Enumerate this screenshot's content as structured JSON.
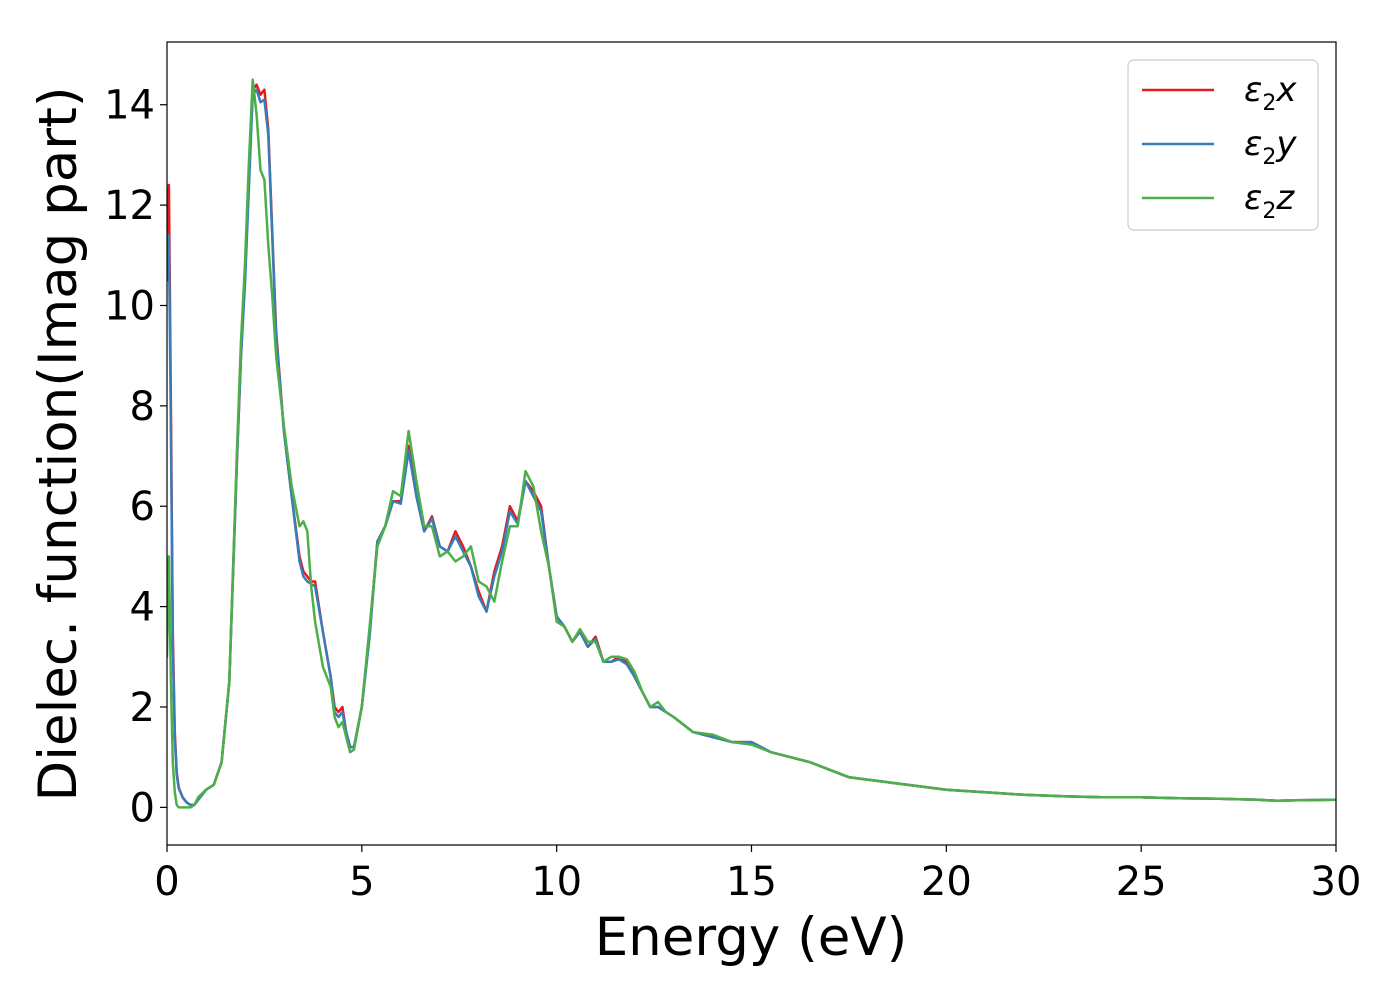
{
  "chart_data": {
    "type": "line",
    "xlabel": "Energy (eV)",
    "ylabel": "Dielec. function(Imag part)",
    "xlim": [
      0,
      30
    ],
    "ylim": [
      -0.75,
      15.25
    ],
    "xticks": [
      0,
      5,
      10,
      15,
      20,
      25,
      30
    ],
    "yticks": [
      0,
      2,
      4,
      6,
      8,
      10,
      12,
      14
    ],
    "grid": false,
    "legend_position": "top-right",
    "series": [
      {
        "name": "ε2x",
        "legend": {
          "base": "ε",
          "sub": "2",
          "tail": "x"
        },
        "color": "#e41a1c",
        "x": [
          0.0,
          0.05,
          0.1,
          0.15,
          0.2,
          0.25,
          0.3,
          0.4,
          0.5,
          0.6,
          0.7,
          0.8,
          1.0,
          1.2,
          1.4,
          1.6,
          1.8,
          1.9,
          2.0,
          2.1,
          2.2,
          2.3,
          2.4,
          2.5,
          2.6,
          2.7,
          2.8,
          3.0,
          3.2,
          3.4,
          3.5,
          3.6,
          3.7,
          3.8,
          4.0,
          4.2,
          4.3,
          4.4,
          4.5,
          4.6,
          4.7,
          4.8,
          5.0,
          5.2,
          5.4,
          5.6,
          5.8,
          6.0,
          6.2,
          6.4,
          6.6,
          6.8,
          7.0,
          7.2,
          7.4,
          7.6,
          7.8,
          8.0,
          8.2,
          8.4,
          8.6,
          8.8,
          9.0,
          9.2,
          9.4,
          9.6,
          9.8,
          10.0,
          10.2,
          10.4,
          10.6,
          10.8,
          11.0,
          11.2,
          11.4,
          11.6,
          11.8,
          12.0,
          12.2,
          12.4,
          12.6,
          12.8,
          13.0,
          13.5,
          14.0,
          14.5,
          15.0,
          15.5,
          16.0,
          16.5,
          17.0,
          17.5,
          18.0,
          18.5,
          19.0,
          19.5,
          20.0,
          21.0,
          22.0,
          23.0,
          24.0,
          25.0,
          26.0,
          27.0,
          28.0,
          28.5,
          29.0,
          30.0
        ],
        "y": [
          11.0,
          12.4,
          8.0,
          3.5,
          1.5,
          0.7,
          0.4,
          0.2,
          0.1,
          0.05,
          0.05,
          0.15,
          0.35,
          0.45,
          0.9,
          2.5,
          7.0,
          9.0,
          10.5,
          12.5,
          14.3,
          14.4,
          14.2,
          14.3,
          13.5,
          11.5,
          9.5,
          7.5,
          6.2,
          5.0,
          4.7,
          4.6,
          4.5,
          4.5,
          3.5,
          2.6,
          2.0,
          1.9,
          2.0,
          1.5,
          1.2,
          1.2,
          2.0,
          3.5,
          5.3,
          5.6,
          6.1,
          6.1,
          7.2,
          6.2,
          5.5,
          5.8,
          5.2,
          5.1,
          5.5,
          5.2,
          4.8,
          4.3,
          3.9,
          4.7,
          5.2,
          6.0,
          5.7,
          6.5,
          6.3,
          6.0,
          4.8,
          3.8,
          3.6,
          3.3,
          3.5,
          3.2,
          3.4,
          2.9,
          2.9,
          3.0,
          2.9,
          2.6,
          2.3,
          2.0,
          2.0,
          1.9,
          1.8,
          1.5,
          1.4,
          1.3,
          1.3,
          1.1,
          1.0,
          0.9,
          0.75,
          0.6,
          0.55,
          0.5,
          0.45,
          0.4,
          0.35,
          0.3,
          0.25,
          0.22,
          0.2,
          0.2,
          0.18,
          0.17,
          0.15,
          0.13,
          0.14,
          0.15
        ]
      },
      {
        "name": "ε2y",
        "legend": {
          "base": "ε",
          "sub": "2",
          "tail": "y"
        },
        "color": "#377eb8",
        "x": [
          0.0,
          0.05,
          0.1,
          0.15,
          0.2,
          0.25,
          0.3,
          0.4,
          0.5,
          0.6,
          0.7,
          0.8,
          1.0,
          1.2,
          1.4,
          1.6,
          1.8,
          1.9,
          2.0,
          2.1,
          2.2,
          2.3,
          2.4,
          2.5,
          2.6,
          2.7,
          2.8,
          3.0,
          3.2,
          3.4,
          3.5,
          3.6,
          3.7,
          3.8,
          4.0,
          4.2,
          4.3,
          4.4,
          4.5,
          4.6,
          4.7,
          4.8,
          5.0,
          5.2,
          5.4,
          5.6,
          5.8,
          6.0,
          6.2,
          6.4,
          6.6,
          6.8,
          7.0,
          7.2,
          7.4,
          7.6,
          7.8,
          8.0,
          8.2,
          8.4,
          8.6,
          8.8,
          9.0,
          9.2,
          9.4,
          9.6,
          9.8,
          10.0,
          10.2,
          10.4,
          10.6,
          10.8,
          11.0,
          11.2,
          11.4,
          11.6,
          11.8,
          12.0,
          12.2,
          12.4,
          12.6,
          12.8,
          13.0,
          13.5,
          14.0,
          14.5,
          15.0,
          15.5,
          16.0,
          16.5,
          17.0,
          17.5,
          18.0,
          18.5,
          19.0,
          19.5,
          20.0,
          21.0,
          22.0,
          23.0,
          24.0,
          25.0,
          26.0,
          27.0,
          28.0,
          28.5,
          29.0,
          30.0
        ],
        "y": [
          10.5,
          11.4,
          7.5,
          3.2,
          1.4,
          0.65,
          0.38,
          0.2,
          0.1,
          0.05,
          0.05,
          0.15,
          0.35,
          0.45,
          0.9,
          2.5,
          7.0,
          9.0,
          10.4,
          12.3,
          14.2,
          14.3,
          14.05,
          14.1,
          13.4,
          11.4,
          9.4,
          7.5,
          6.2,
          4.9,
          4.6,
          4.5,
          4.45,
          4.4,
          3.5,
          2.6,
          1.9,
          1.8,
          1.9,
          1.5,
          1.2,
          1.2,
          2.0,
          3.4,
          5.3,
          5.6,
          6.1,
          6.05,
          7.1,
          6.2,
          5.5,
          5.75,
          5.2,
          5.1,
          5.4,
          5.1,
          4.8,
          4.2,
          3.9,
          4.6,
          5.1,
          5.9,
          5.65,
          6.5,
          6.2,
          5.9,
          4.8,
          3.8,
          3.6,
          3.3,
          3.5,
          3.2,
          3.35,
          2.9,
          2.9,
          2.95,
          2.85,
          2.6,
          2.3,
          2.0,
          2.0,
          1.9,
          1.8,
          1.5,
          1.4,
          1.3,
          1.3,
          1.1,
          1.0,
          0.9,
          0.75,
          0.6,
          0.55,
          0.5,
          0.45,
          0.4,
          0.35,
          0.3,
          0.25,
          0.22,
          0.2,
          0.2,
          0.18,
          0.17,
          0.15,
          0.13,
          0.14,
          0.15
        ]
      },
      {
        "name": "ε2z",
        "legend": {
          "base": "ε",
          "sub": "2",
          "tail": "z"
        },
        "color": "#4daf4a",
        "x": [
          0.0,
          0.05,
          0.1,
          0.15,
          0.2,
          0.25,
          0.3,
          0.4,
          0.5,
          0.6,
          0.7,
          0.8,
          1.0,
          1.2,
          1.4,
          1.6,
          1.8,
          1.9,
          2.0,
          2.1,
          2.2,
          2.3,
          2.4,
          2.5,
          2.6,
          2.7,
          2.8,
          3.0,
          3.2,
          3.4,
          3.5,
          3.6,
          3.7,
          3.8,
          4.0,
          4.2,
          4.3,
          4.4,
          4.5,
          4.6,
          4.7,
          4.8,
          5.0,
          5.2,
          5.4,
          5.6,
          5.8,
          6.0,
          6.2,
          6.4,
          6.6,
          6.8,
          7.0,
          7.2,
          7.4,
          7.6,
          7.8,
          8.0,
          8.2,
          8.4,
          8.6,
          8.8,
          9.0,
          9.2,
          9.4,
          9.6,
          9.8,
          10.0,
          10.2,
          10.4,
          10.6,
          10.8,
          11.0,
          11.2,
          11.4,
          11.6,
          11.8,
          12.0,
          12.2,
          12.4,
          12.6,
          12.8,
          13.0,
          13.5,
          14.0,
          14.5,
          15.0,
          15.5,
          16.0,
          16.5,
          17.0,
          17.5,
          18.0,
          18.5,
          19.0,
          19.5,
          20.0,
          21.0,
          22.0,
          23.0,
          24.0,
          25.0,
          26.0,
          27.0,
          28.0,
          28.5,
          29.0,
          30.0
        ],
        "y": [
          3.0,
          5.0,
          2.5,
          0.9,
          0.3,
          0.05,
          0.0,
          0.0,
          0.0,
          0.0,
          0.05,
          0.2,
          0.35,
          0.45,
          0.9,
          2.5,
          7.2,
          9.3,
          10.8,
          12.8,
          14.5,
          13.8,
          12.7,
          12.5,
          11.2,
          10.2,
          9.0,
          7.6,
          6.4,
          5.6,
          5.7,
          5.5,
          4.4,
          3.7,
          2.8,
          2.4,
          1.8,
          1.6,
          1.7,
          1.4,
          1.1,
          1.15,
          2.0,
          3.6,
          5.2,
          5.6,
          6.3,
          6.2,
          7.5,
          6.5,
          5.6,
          5.6,
          5.0,
          5.1,
          4.9,
          5.0,
          5.2,
          4.5,
          4.4,
          4.1,
          4.9,
          5.6,
          5.6,
          6.7,
          6.4,
          5.5,
          4.8,
          3.7,
          3.6,
          3.3,
          3.55,
          3.3,
          3.3,
          2.9,
          3.0,
          3.0,
          2.95,
          2.7,
          2.3,
          2.0,
          2.1,
          1.9,
          1.8,
          1.5,
          1.45,
          1.3,
          1.25,
          1.1,
          1.0,
          0.9,
          0.75,
          0.6,
          0.55,
          0.5,
          0.45,
          0.4,
          0.35,
          0.3,
          0.25,
          0.22,
          0.2,
          0.2,
          0.18,
          0.17,
          0.15,
          0.13,
          0.14,
          0.15
        ]
      }
    ]
  }
}
